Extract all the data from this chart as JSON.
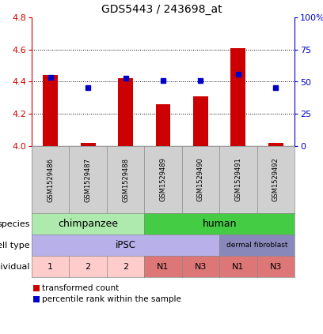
{
  "title": "GDS5443 / 243698_at",
  "samples": [
    "GSM1529486",
    "GSM1529487",
    "GSM1529488",
    "GSM1529489",
    "GSM1529490",
    "GSM1529491",
    "GSM1529492"
  ],
  "red_values": [
    4.44,
    4.02,
    4.42,
    4.26,
    4.31,
    4.61,
    4.02
  ],
  "blue_values": [
    4.425,
    4.365,
    4.42,
    4.405,
    4.405,
    4.445,
    4.365
  ],
  "ylim": [
    4.0,
    4.8
  ],
  "yticks_left": [
    4.0,
    4.2,
    4.4,
    4.6,
    4.8
  ],
  "yticks_right": [
    0,
    25,
    50,
    75,
    100
  ],
  "ytick_labels_right": [
    "0",
    "25",
    "50",
    "75",
    "100%"
  ],
  "bar_color": "#cc0000",
  "dot_color": "#0000cc",
  "bar_base": 4.0,
  "species_groups": [
    {
      "label": "chimpanzee",
      "start": 0,
      "end": 3,
      "color": "#aeeaae"
    },
    {
      "label": "human",
      "start": 3,
      "end": 7,
      "color": "#44cc44"
    }
  ],
  "celltype_groups": [
    {
      "label": "iPSC",
      "start": 0,
      "end": 5,
      "color": "#b8b0e8"
    },
    {
      "label": "dermal fibroblast",
      "start": 5,
      "end": 7,
      "color": "#8888bb"
    }
  ],
  "individual_groups": [
    {
      "label": "1",
      "start": 0,
      "end": 1,
      "color": "#ffcccc"
    },
    {
      "label": "2",
      "start": 1,
      "end": 2,
      "color": "#ffcccc"
    },
    {
      "label": "2",
      "start": 2,
      "end": 3,
      "color": "#ffcccc"
    },
    {
      "label": "N1",
      "start": 3,
      "end": 4,
      "color": "#dd7777"
    },
    {
      "label": "N3",
      "start": 4,
      "end": 5,
      "color": "#dd7777"
    },
    {
      "label": "N1",
      "start": 5,
      "end": 6,
      "color": "#dd7777"
    },
    {
      "label": "N3",
      "start": 6,
      "end": 7,
      "color": "#dd7777"
    }
  ],
  "row_labels": [
    "species",
    "cell type",
    "individual"
  ],
  "legend_items": [
    {
      "color": "#cc0000",
      "label": "transformed count"
    },
    {
      "color": "#0000cc",
      "label": "percentile rank within the sample"
    }
  ],
  "grid_yticks": [
    4.2,
    4.4,
    4.6
  ],
  "left_yaxis_color": "#cc0000",
  "right_yaxis_color": "#0000cc",
  "sample_box_color": "#d0d0d0"
}
